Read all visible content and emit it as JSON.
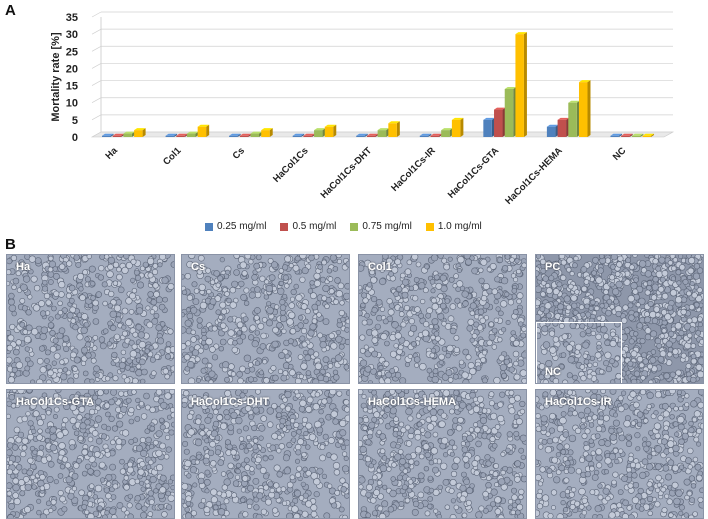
{
  "panel_a_label": "A",
  "panel_b_label": "B",
  "chart_data": {
    "type": "bar",
    "ylabel": "Mortality rate [%]",
    "ylim": [
      0,
      35
    ],
    "yticks": [
      "0",
      "5",
      "10",
      "15",
      "20",
      "25",
      "30",
      "35"
    ],
    "grid": true,
    "categories": [
      "Ha",
      "Col1",
      "Cs",
      "HaCol1Cs",
      "HaCol1Cs-DHT",
      "HaCol1Cs-IR",
      "HaCol1Cs-GTA",
      "HaCol1Cs-HEMA",
      "NC"
    ],
    "series": [
      {
        "name": "0.25 mg/ml",
        "color": "#4f81bd",
        "values": [
          0,
          0,
          0,
          0,
          0,
          0,
          5,
          3,
          0
        ]
      },
      {
        "name": "0.5 mg/ml",
        "color": "#c0504d",
        "values": [
          0,
          0,
          0,
          0,
          0,
          0,
          8,
          5,
          0
        ]
      },
      {
        "name": "0.75 mg/ml",
        "color": "#9bbb59",
        "values": [
          1,
          1,
          1,
          2,
          2,
          2,
          14,
          10,
          0
        ]
      },
      {
        "name": "1.0 mg/ml",
        "color": "#ffc000",
        "values": [
          2,
          3,
          2,
          3,
          4,
          5,
          30,
          16,
          0
        ]
      }
    ],
    "legend_position": "bottom"
  },
  "micrographs": [
    {
      "label": "Ha"
    },
    {
      "label": "Cs"
    },
    {
      "label": "Col1"
    },
    {
      "label": "PC",
      "inset_label": "NC"
    },
    {
      "label": "HaCol1Cs-GTA"
    },
    {
      "label": "HaCol1Cs-DHT"
    },
    {
      "label": "HaCol1Cs-HEMA"
    },
    {
      "label": "HaCol1Cs-IR"
    }
  ]
}
